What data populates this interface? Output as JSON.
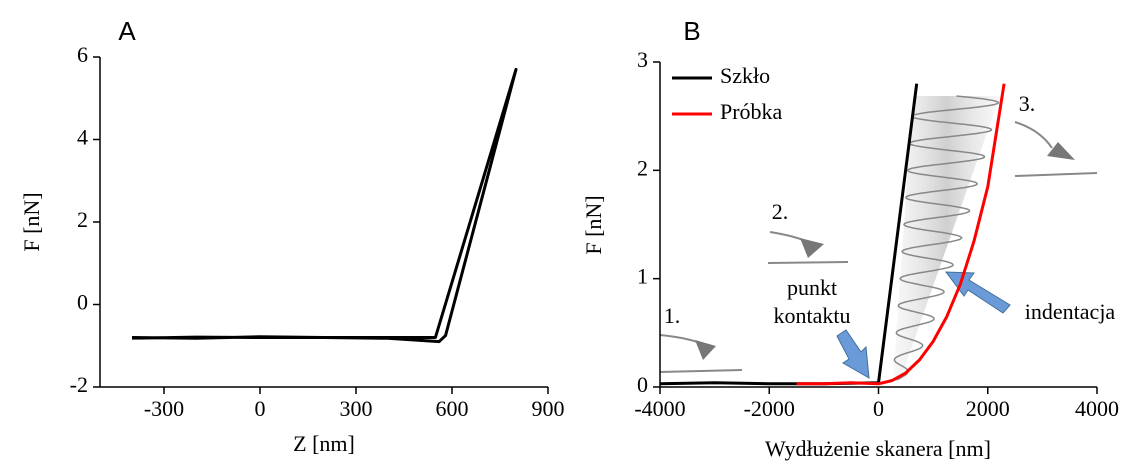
{
  "chart_data": [
    {
      "type": "line",
      "panel_label": "A",
      "xlabel": "Z [nm]",
      "ylabel": "F [nN]",
      "xlim": [
        -500,
        900
      ],
      "xticks": [
        -300,
        0,
        300,
        600,
        900
      ],
      "ylim": [
        -2,
        6
      ],
      "yticks": [
        -2,
        0,
        2,
        4,
        6
      ],
      "series": [
        {
          "color": "#000000",
          "x": [
            -400,
            -200,
            0,
            200,
            400,
            548,
            800,
            580,
            560,
            400,
            200,
            0,
            -200,
            -400
          ],
          "values": [
            -0.8,
            -0.82,
            -0.78,
            -0.8,
            -0.8,
            -0.8,
            5.7,
            -0.75,
            -0.9,
            -0.82,
            -0.8,
            -0.8,
            -0.79,
            -0.82
          ]
        }
      ]
    },
    {
      "type": "line",
      "panel_label": "B",
      "xlabel": "Wydłużenie skanera [nm]",
      "ylabel": "F [nN]",
      "xlim": [
        -4000,
        4000
      ],
      "xticks": [
        -4000,
        -2000,
        0,
        2000,
        4000
      ],
      "ylim": [
        0,
        3
      ],
      "yticks": [
        0,
        1,
        2,
        3
      ],
      "legend": "upper left",
      "series": [
        {
          "name": "Szkło",
          "color": "#000000",
          "x": [
            -4000,
            -3000,
            -2000,
            -1000,
            0,
            700
          ],
          "values": [
            0.03,
            0.04,
            0.03,
            0.03,
            0.04,
            2.8
          ]
        },
        {
          "name": "Próbka",
          "color": "#ff0000",
          "x": [
            -1500,
            -1000,
            -500,
            0,
            250,
            500,
            750,
            1000,
            1250,
            1500,
            1750,
            2000,
            2300
          ],
          "values": [
            0.03,
            0.03,
            0.04,
            0.03,
            0.06,
            0.13,
            0.25,
            0.42,
            0.65,
            0.95,
            1.35,
            1.85,
            2.8
          ]
        }
      ],
      "annotations": [
        "1.",
        "2.",
        "3.",
        "punkt",
        "kontaktu",
        "indentacja"
      ]
    }
  ]
}
